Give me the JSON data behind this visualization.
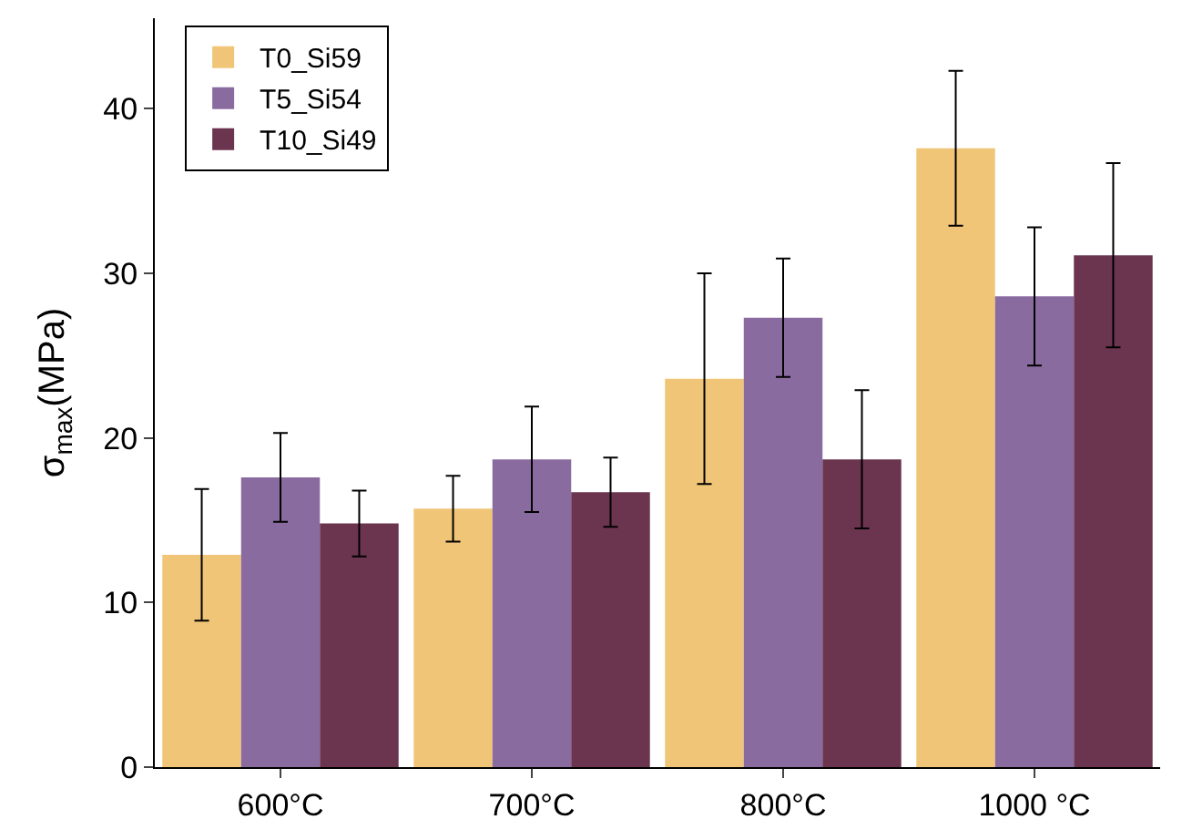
{
  "chart_data": {
    "type": "bar",
    "ylabel": "σ$_{max}$(MPa)",
    "categories": [
      "600°C",
      "700°C",
      "800°C",
      "1000 °C"
    ],
    "series": [
      {
        "name": "T0_Si59",
        "color": "#f0c577",
        "values": [
          12.9,
          15.7,
          23.6,
          37.6
        ],
        "errors": [
          4.0,
          2.0,
          6.4,
          4.7
        ]
      },
      {
        "name": "T5_Si54",
        "color": "#8a6b9f",
        "values": [
          17.6,
          18.7,
          27.3,
          28.6
        ],
        "errors": [
          2.7,
          3.2,
          3.6,
          4.2
        ]
      },
      {
        "name": "T10_Si49",
        "color": "#6b3550",
        "values": [
          14.8,
          16.7,
          18.7,
          31.1
        ],
        "errors": [
          2.0,
          2.1,
          4.2,
          5.6
        ]
      }
    ],
    "ylim": [
      0,
      45.5
    ],
    "yticks": [
      0,
      10,
      20,
      30,
      40
    ],
    "legend": "top left"
  }
}
